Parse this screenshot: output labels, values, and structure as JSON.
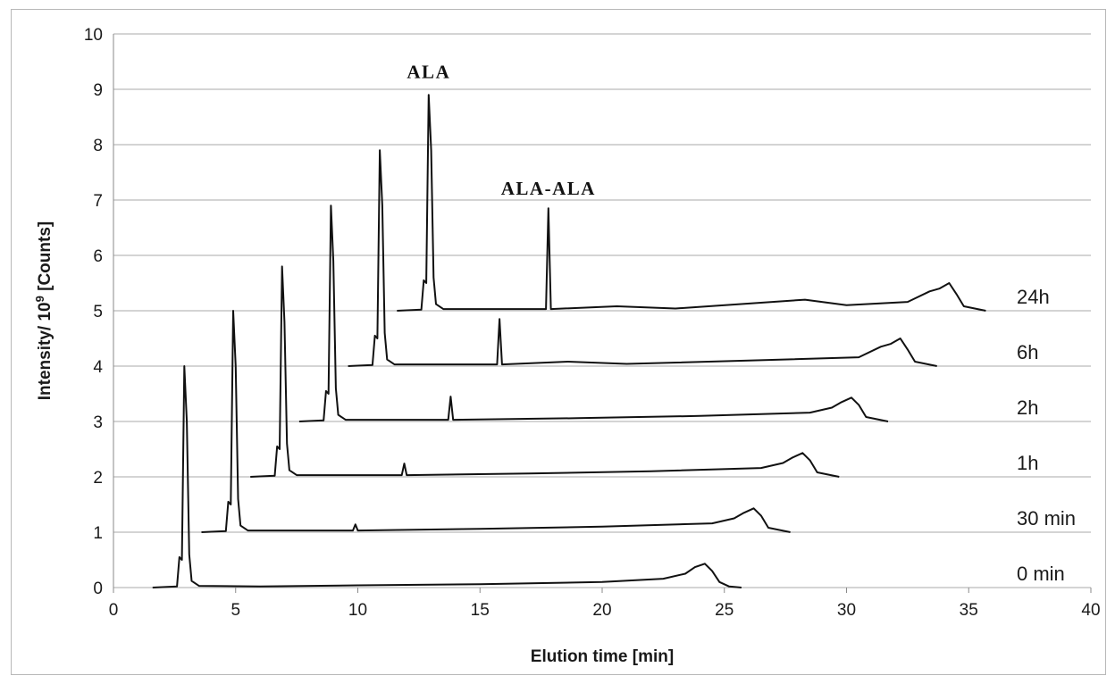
{
  "chart_data": {
    "type": "line",
    "xlabel": "Elution time [min]",
    "ylabel": "Intensity/ 10",
    "ylabel_exponent": "9",
    "ylabel_suffix": " [Counts]",
    "xlim": [
      0,
      40
    ],
    "ylim": [
      0,
      10
    ],
    "x_ticks": [
      "0",
      "5",
      "10",
      "15",
      "20",
      "25",
      "30",
      "35",
      "40"
    ],
    "y_ticks": [
      "0",
      "1",
      "2",
      "3",
      "4",
      "5",
      "6",
      "7",
      "8",
      "9",
      "10"
    ],
    "grid": "horizontal",
    "annotations": [
      {
        "text": "ALA",
        "x": 12.9,
        "y": 9.2
      },
      {
        "text": "ALA-ALA",
        "x": 17.8,
        "y": 7.1
      }
    ],
    "series": [
      {
        "name": "0 min",
        "x_offset": 0,
        "baseline": 0,
        "x": [
          1.6,
          2.6,
          2.7,
          2.8,
          2.9,
          3.0,
          3.1,
          3.2,
          3.5,
          6.0,
          10.0,
          15.0,
          20.0,
          22.5,
          23.4,
          23.8,
          24.2,
          24.5,
          24.8,
          25.2,
          25.7
        ],
        "y": [
          0,
          0.02,
          0.55,
          0.5,
          4.0,
          3.0,
          0.6,
          0.12,
          0.03,
          0.02,
          0.04,
          0.06,
          0.1,
          0.16,
          0.25,
          0.37,
          0.43,
          0.3,
          0.1,
          0.02,
          0
        ]
      },
      {
        "name": "30 min",
        "x_offset": 2,
        "baseline": 1,
        "x": [
          3.6,
          4.6,
          4.7,
          4.8,
          4.9,
          5.0,
          5.1,
          5.2,
          5.5,
          9.8,
          9.9,
          10.0,
          15.0,
          20.0,
          24.5,
          25.4,
          25.8,
          26.2,
          26.5,
          26.8,
          27.7
        ],
        "y": [
          1,
          1.02,
          1.55,
          1.5,
          5.0,
          4.0,
          1.6,
          1.12,
          1.03,
          1.03,
          1.14,
          1.03,
          1.06,
          1.1,
          1.16,
          1.25,
          1.35,
          1.43,
          1.3,
          1.08,
          1
        ]
      },
      {
        "name": "1h",
        "x_offset": 4,
        "baseline": 2,
        "x": [
          5.6,
          6.6,
          6.7,
          6.8,
          6.9,
          7.0,
          7.1,
          7.2,
          7.5,
          11.8,
          11.9,
          12.0,
          17.0,
          22.0,
          26.5,
          27.4,
          27.8,
          28.2,
          28.5,
          28.8,
          29.7
        ],
        "y": [
          2,
          2.02,
          2.55,
          2.5,
          5.8,
          4.8,
          2.6,
          2.12,
          2.03,
          2.03,
          2.24,
          2.03,
          2.06,
          2.1,
          2.16,
          2.25,
          2.35,
          2.43,
          2.3,
          2.08,
          2
        ]
      },
      {
        "name": "2h",
        "x_offset": 6,
        "baseline": 3,
        "x": [
          7.6,
          8.6,
          8.7,
          8.8,
          8.9,
          9.0,
          9.1,
          9.2,
          9.5,
          13.7,
          13.8,
          13.9,
          19.0,
          24.0,
          28.5,
          29.4,
          29.8,
          30.2,
          30.5,
          30.8,
          31.7
        ],
        "y": [
          3,
          3.02,
          3.55,
          3.5,
          6.9,
          5.9,
          3.6,
          3.12,
          3.03,
          3.03,
          3.45,
          3.03,
          3.06,
          3.1,
          3.16,
          3.25,
          3.35,
          3.43,
          3.3,
          3.08,
          3
        ]
      },
      {
        "name": "6h",
        "x_offset": 8,
        "baseline": 4,
        "x": [
          9.6,
          10.6,
          10.7,
          10.8,
          10.9,
          11.0,
          11.1,
          11.2,
          11.5,
          15.7,
          15.8,
          15.9,
          18.6,
          21.0,
          26.0,
          30.5,
          31.4,
          31.8,
          32.2,
          32.5,
          32.8,
          33.7
        ],
        "y": [
          4,
          4.02,
          4.55,
          4.5,
          7.9,
          6.9,
          4.6,
          4.12,
          4.03,
          4.03,
          4.85,
          4.03,
          4.08,
          4.04,
          4.1,
          4.16,
          4.35,
          4.4,
          4.5,
          4.3,
          4.08,
          4
        ]
      },
      {
        "name": "24h",
        "x_offset": 10,
        "baseline": 5,
        "x": [
          11.6,
          12.6,
          12.7,
          12.8,
          12.9,
          13.0,
          13.1,
          13.2,
          13.5,
          17.7,
          17.8,
          17.9,
          20.6,
          23.0,
          28.3,
          30.0,
          32.5,
          33.4,
          33.8,
          34.2,
          34.5,
          34.8,
          35.7
        ],
        "y": [
          5,
          5.02,
          5.55,
          5.5,
          8.9,
          7.9,
          5.6,
          5.12,
          5.03,
          5.03,
          6.85,
          5.03,
          5.08,
          5.04,
          5.2,
          5.1,
          5.16,
          5.35,
          5.4,
          5.5,
          5.3,
          5.08,
          5
        ]
      }
    ]
  }
}
